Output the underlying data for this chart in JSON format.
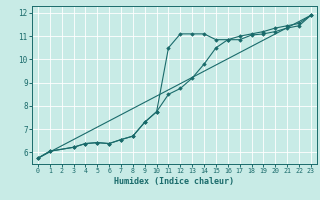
{
  "background_color": "#c8ebe6",
  "grid_color": "#ffffff",
  "line_color": "#1a6b6b",
  "marker_color": "#1a6b6b",
  "xlabel": "Humidex (Indice chaleur)",
  "xlim": [
    -0.5,
    23.5
  ],
  "ylim": [
    5.5,
    12.3
  ],
  "yticks": [
    6,
    7,
    8,
    9,
    10,
    11,
    12
  ],
  "xticks": [
    0,
    1,
    2,
    3,
    4,
    5,
    6,
    7,
    8,
    9,
    10,
    11,
    12,
    13,
    14,
    15,
    16,
    17,
    18,
    19,
    20,
    21,
    22,
    23
  ],
  "curve1_x": [
    0,
    1,
    3,
    4,
    5,
    6,
    7,
    8,
    9,
    10,
    11,
    12,
    13,
    14,
    15,
    16,
    17,
    18,
    19,
    20,
    21,
    22,
    23
  ],
  "curve1_y": [
    5.75,
    6.05,
    6.22,
    6.38,
    6.42,
    6.38,
    6.55,
    6.7,
    7.3,
    7.75,
    10.5,
    11.1,
    11.1,
    11.1,
    10.85,
    10.85,
    10.85,
    11.05,
    11.1,
    11.2,
    11.35,
    11.45,
    11.9
  ],
  "curve2_x": [
    0,
    1,
    3,
    4,
    5,
    6,
    7,
    8,
    9,
    10,
    11,
    12,
    13,
    14,
    15,
    16,
    17,
    18,
    19,
    20,
    21,
    22,
    23
  ],
  "curve2_y": [
    5.75,
    6.05,
    6.22,
    6.38,
    6.42,
    6.38,
    6.55,
    6.7,
    7.3,
    7.75,
    8.5,
    8.75,
    9.2,
    9.8,
    10.5,
    10.85,
    11.0,
    11.1,
    11.2,
    11.35,
    11.45,
    11.55,
    11.9
  ],
  "curve3_x": [
    0,
    23
  ],
  "curve3_y": [
    5.75,
    11.9
  ]
}
